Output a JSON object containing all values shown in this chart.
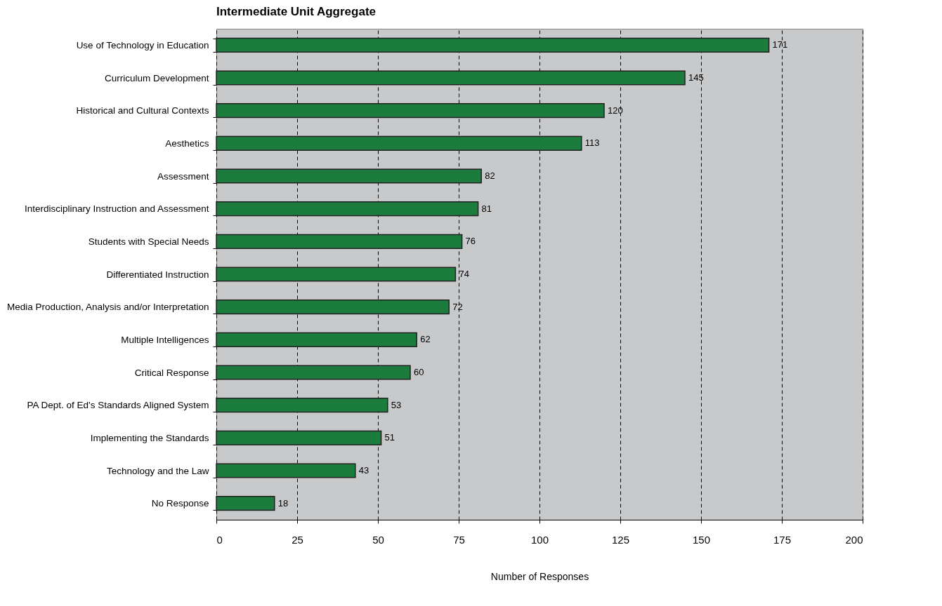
{
  "chart_data": {
    "type": "bar",
    "orientation": "horizontal",
    "title": "Intermediate Unit Aggregate",
    "xlabel": "Number of Responses",
    "categories": [
      "Use of Technology in Education",
      "Curriculum Development",
      "Historical and Cultural Contexts",
      "Aesthetics",
      "Assessment",
      "Interdisciplinary Instruction and Assessment",
      "Students with Special Needs",
      "Differentiated Instruction",
      "Media Production, Analysis and/or Interpretation",
      "Multiple Intelligences",
      "Critical Response",
      "PA Dept. of Ed's Standards Aligned System",
      "Implementing the Standards",
      "Technology and the Law",
      "No Response"
    ],
    "values": [
      171,
      145,
      120,
      113,
      82,
      81,
      76,
      74,
      72,
      62,
      60,
      53,
      51,
      43,
      18
    ],
    "color": "#1b7c3e",
    "xlim": [
      0,
      200
    ],
    "xticks": [
      0,
      25,
      50,
      75,
      100,
      125,
      150,
      175,
      200
    ],
    "grid": "x",
    "data_labels": true
  }
}
